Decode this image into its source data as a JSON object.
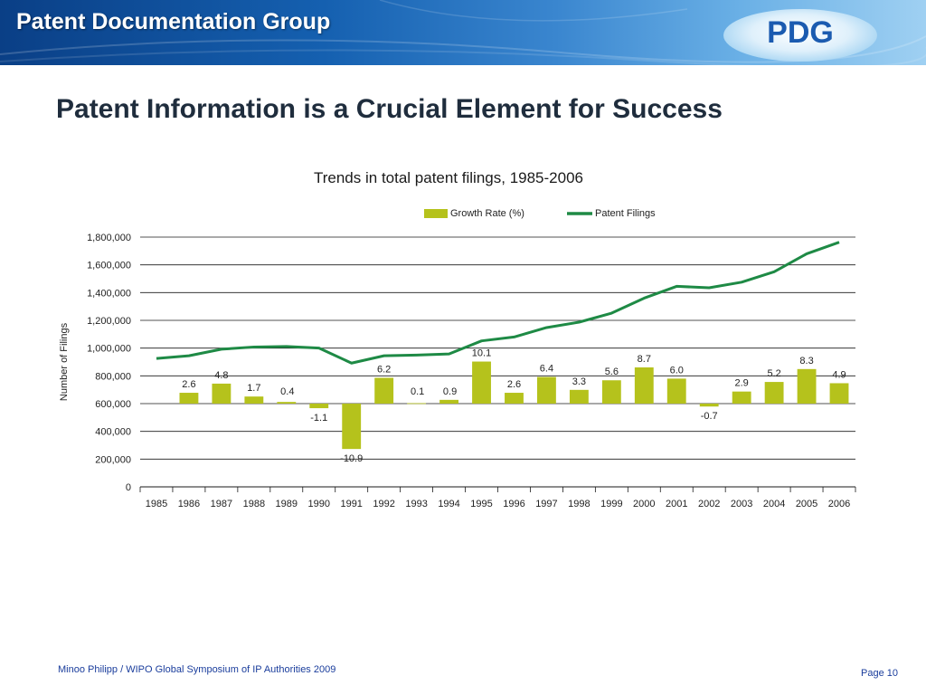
{
  "header": {
    "org_name": "Patent Documentation Group",
    "logo": "PDG"
  },
  "slide": {
    "title": "Patent Information is a Crucial Element for Success"
  },
  "footer": {
    "credit": "Minoo Philipp / WIPO Global Symposium of IP Authorities 2009",
    "page": "Page 10"
  },
  "colors": {
    "bar": "#b5c21c",
    "line": "#1e8a45",
    "banner_dark": "#0a3f86",
    "banner_light": "#9fd0f2"
  },
  "chart_data": {
    "type": "bar",
    "title": "Trends in total patent filings, 1985-2006",
    "ylabel": "Number of Filings",
    "ylim": [
      0,
      1800000
    ],
    "yticks": [
      "0",
      "200,000",
      "400,000",
      "600,000",
      "800,000",
      "1,000,000",
      "1,200,000",
      "1,400,000",
      "1,600,000",
      "1,800,000"
    ],
    "grid": true,
    "legend_position": "top",
    "categories": [
      "1985",
      "1986",
      "1987",
      "1988",
      "1989",
      "1990",
      "1991",
      "1992",
      "1993",
      "1994",
      "1995",
      "1996",
      "1997",
      "1998",
      "1999",
      "2000",
      "2001",
      "2002",
      "2003",
      "2004",
      "2005",
      "2006"
    ],
    "series": [
      {
        "name": "Growth Rate (%)",
        "kind": "bar",
        "values": [
          null,
          2.6,
          4.8,
          1.7,
          0.4,
          -1.1,
          -10.9,
          6.2,
          0.1,
          0.9,
          10.1,
          2.6,
          6.4,
          3.3,
          5.6,
          8.7,
          6.0,
          -0.7,
          2.9,
          5.2,
          8.3,
          4.9
        ],
        "labels": [
          "",
          "2.6",
          "4.8",
          "1.7",
          "0.4",
          "-1.1",
          "-10.9",
          "6.2",
          "0.1",
          "0.9",
          "10.1",
          "2.6",
          "6.4",
          "3.3",
          "5.6",
          "8.7",
          "6.0",
          "-0.7",
          "2.9",
          "5.2",
          "8.3",
          "4.9"
        ]
      },
      {
        "name": "Patent Filings",
        "kind": "line",
        "values": [
          925000,
          945000,
          992000,
          1008000,
          1012000,
          1000000,
          892000,
          945000,
          950000,
          958000,
          1052000,
          1080000,
          1148000,
          1187000,
          1252000,
          1360000,
          1445000,
          1435000,
          1475000,
          1550000,
          1680000,
          1763000
        ]
      }
    ]
  }
}
